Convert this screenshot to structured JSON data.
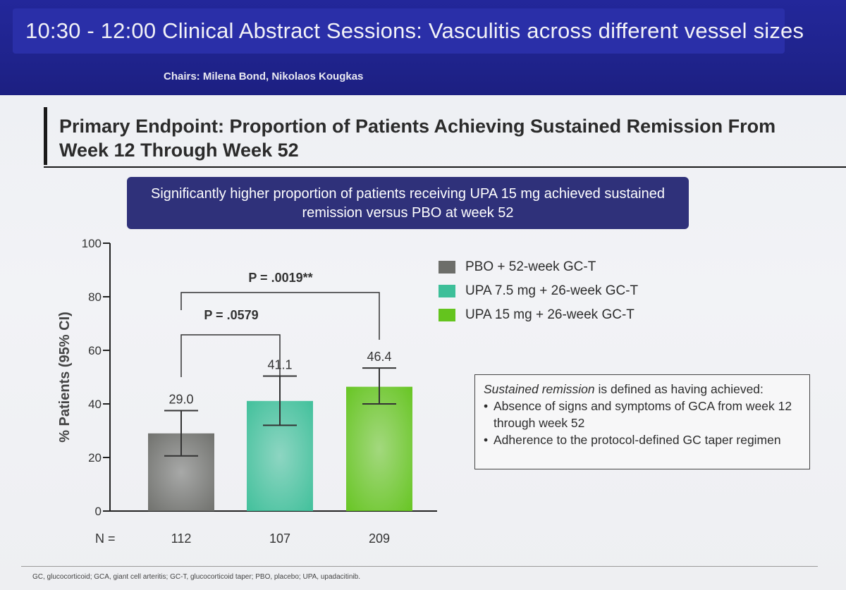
{
  "header": {
    "session_title": "10:30 - 12:00   Clinical Abstract Sessions: Vasculitis across different vessel sizes",
    "chairs": "Chairs: Milena Bond, Nikolaos Kougkas"
  },
  "slide": {
    "title": "Primary Endpoint: Proportion of Patients Achieving Sustained Remission From Week 12 Through Week 52",
    "callout": "Significantly higher proportion of patients receiving UPA 15 mg achieved sustained remission versus PBO at week 52",
    "definition": {
      "lead_italic": "Sustained remission",
      "lead_rest": " is defined as having achieved:",
      "bullets": [
        "Absence of signs and symptoms of GCA from week 12 through week 52",
        "Adherence to the protocol-defined GC taper regimen"
      ]
    },
    "footnote": "GC, glucocorticoid; GCA, giant cell arteritis; GC-T, glucocorticoid taper; PBO, placebo; UPA, upadacitinib."
  },
  "chart_data": {
    "type": "bar",
    "ylabel": "% Patients (95% CI)",
    "ylim": [
      0,
      100
    ],
    "yticks": [
      0,
      20,
      40,
      60,
      80,
      100
    ],
    "categories": [
      "PBO + 52-week GC-T",
      "UPA 7.5 mg + 26-week GC-T",
      "UPA 15 mg + 26-week GC-T"
    ],
    "values": [
      29.0,
      41.1,
      46.4
    ],
    "value_labels": [
      "29.0",
      "41.1",
      "46.4"
    ],
    "ci_low": [
      20.6,
      32.0,
      40.0
    ],
    "ci_high": [
      37.5,
      50.4,
      53.4
    ],
    "colors": [
      "#6d6e6a",
      "#3dbf99",
      "#64c41e"
    ],
    "n_label": "N =",
    "n_values": [
      "112",
      "107",
      "209"
    ],
    "comparisons": [
      {
        "from": 0,
        "to": 1,
        "label": "P = .0579"
      },
      {
        "from": 0,
        "to": 2,
        "label": "P = .0019**"
      }
    ],
    "legend_position": "right"
  }
}
